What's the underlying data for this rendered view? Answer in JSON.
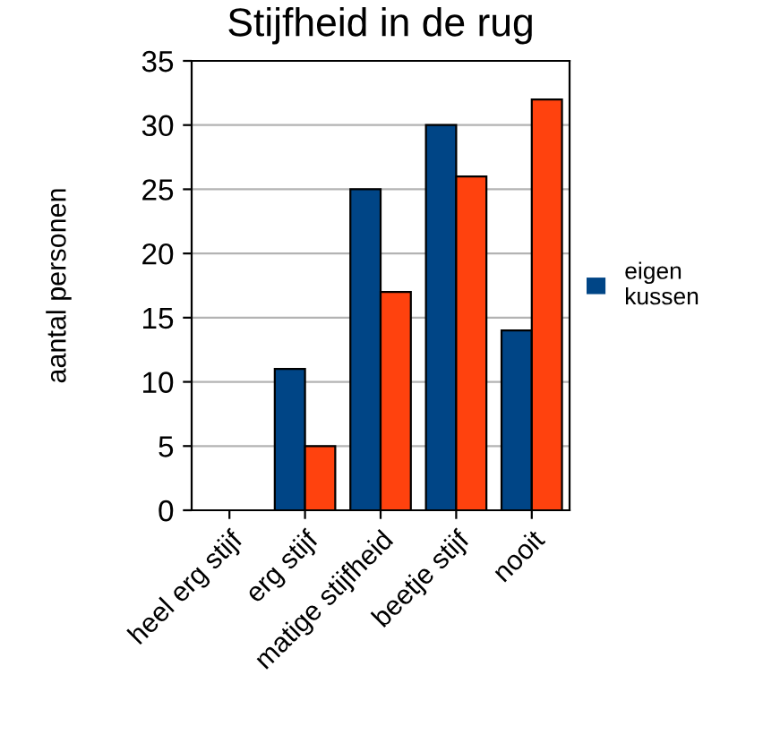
{
  "chart_data": {
    "type": "bar",
    "title": "Stijfheid in de rug",
    "ylabel": "aantal personen",
    "categories": [
      "heel erg stijf",
      "erg stijf",
      "matige stijfheid",
      "beetje stijf",
      "nooit"
    ],
    "series": [
      {
        "name": "eigen kussen",
        "color": "#004586",
        "values": [
          0,
          11,
          25,
          30,
          14
        ]
      },
      {
        "color": "#ff420e",
        "values": [
          0,
          5,
          17,
          26,
          32
        ]
      }
    ],
    "ylim": [
      0,
      35
    ],
    "yticks": [
      0,
      5,
      10,
      15,
      20,
      25,
      30,
      35
    ],
    "grid": "y",
    "legend": "right"
  }
}
